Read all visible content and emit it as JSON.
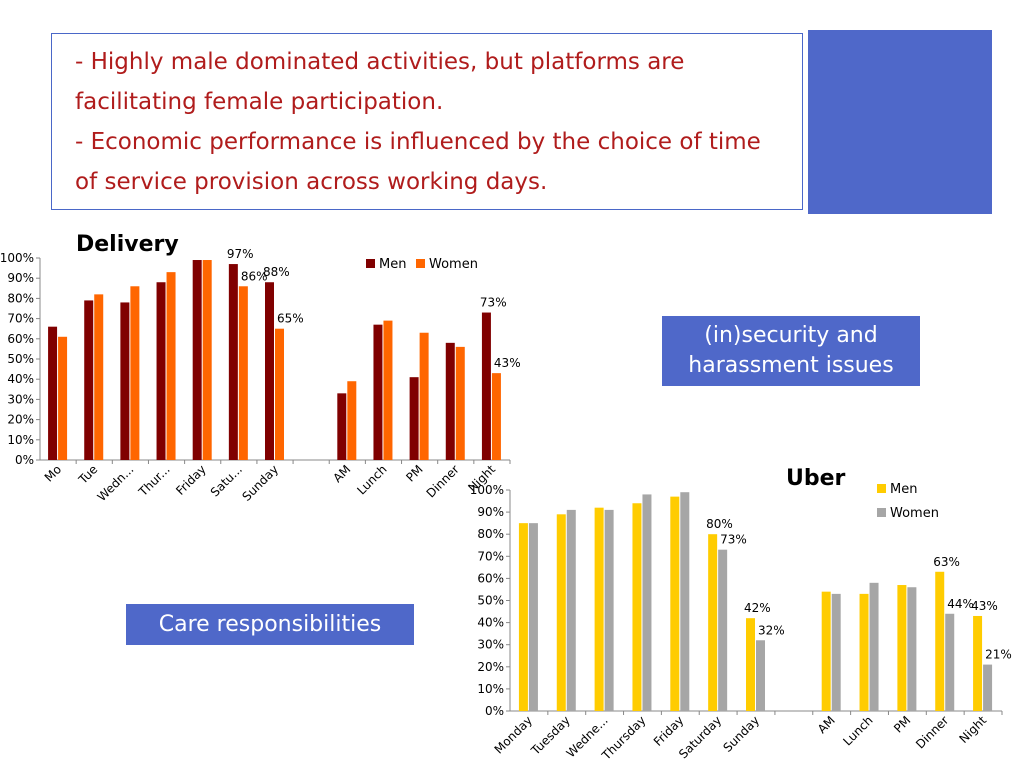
{
  "text_box": {
    "lines": [
      "- Highly male dominated activities, but platforms are",
      "facilitating female participation.",
      "- Economic performance is influenced by the choice of time",
      "of service provision across working days."
    ]
  },
  "callouts": {
    "security": [
      "(in)security and",
      "harassment issues"
    ],
    "care": "Care responsibilities"
  },
  "colors": {
    "accent_blue": "#4f68c9",
    "text_red": "#b01c1c"
  },
  "chart_data": [
    {
      "type": "bar",
      "title": "Delivery",
      "categories": [
        "Mo",
        "Tue",
        "Wedn...",
        "Thur...",
        "Friday",
        "Satu...",
        "Sunday",
        "",
        "AM",
        "Lunch",
        "PM",
        "Dinner",
        "Night"
      ],
      "series": [
        {
          "name": "Men",
          "color": "#800000",
          "values": [
            66,
            79,
            78,
            88,
            99,
            97,
            88,
            null,
            33,
            67,
            41,
            58,
            73
          ],
          "labels": [
            "",
            "",
            "",
            "",
            "",
            "97%",
            "88%",
            "",
            "",
            "",
            "",
            "",
            "73%"
          ]
        },
        {
          "name": "Women",
          "color": "#ff6600",
          "values": [
            61,
            82,
            86,
            93,
            99,
            86,
            65,
            null,
            39,
            69,
            63,
            56,
            43
          ],
          "labels": [
            "",
            "",
            "",
            "",
            "",
            "86%",
            "65%",
            "",
            "",
            "",
            "",
            "",
            "43%"
          ]
        }
      ],
      "yticks": [
        "0%",
        "10%",
        "20%",
        "30%",
        "40%",
        "50%",
        "60%",
        "70%",
        "80%",
        "90%",
        "100%"
      ],
      "ylim": [
        0,
        100
      ],
      "grid": false,
      "legend": "top-right"
    },
    {
      "type": "bar",
      "title": "Uber",
      "categories": [
        "Monday",
        "Tuesday",
        "Wedne...",
        "Thursday",
        "Friday",
        "Saturday",
        "Sunday",
        "",
        "AM",
        "Lunch",
        "PM",
        "Dinner",
        "Night"
      ],
      "series": [
        {
          "name": "Men",
          "color": "#ffcc00",
          "values": [
            85,
            89,
            92,
            94,
            97,
            80,
            42,
            null,
            54,
            53,
            57,
            63,
            43
          ],
          "labels": [
            "",
            "",
            "",
            "",
            "",
            "80%",
            "42%",
            "",
            "",
            "",
            "",
            "63%",
            "43%"
          ]
        },
        {
          "name": "Women",
          "color": "#a6a6a6",
          "values": [
            85,
            91,
            91,
            98,
            99,
            73,
            32,
            null,
            53,
            58,
            56,
            44,
            21
          ],
          "labels": [
            "",
            "",
            "",
            "",
            "",
            "73%",
            "32%",
            "",
            "",
            "",
            "",
            "44%",
            "21%"
          ]
        }
      ],
      "yticks": [
        "0%",
        "10%",
        "20%",
        "30%",
        "40%",
        "50%",
        "60%",
        "70%",
        "80%",
        "90%",
        "100%"
      ],
      "ylim": [
        0,
        100
      ],
      "grid": false,
      "legend": "top-right"
    }
  ]
}
